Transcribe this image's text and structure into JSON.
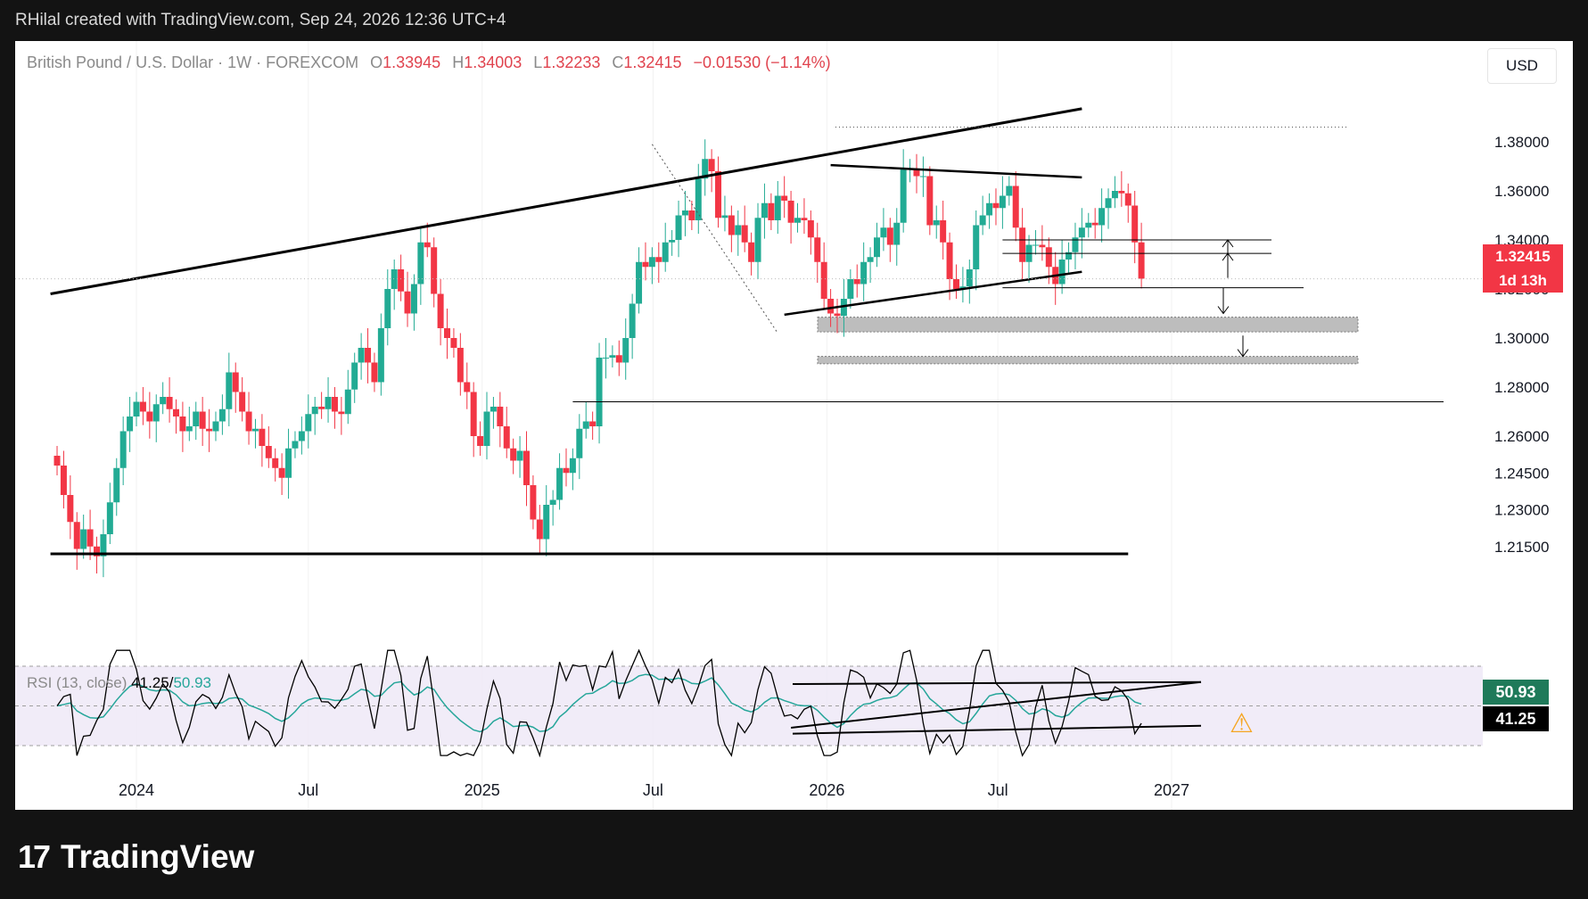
{
  "header": {
    "attribution": "RHilal created with TradingView.com, Sep 24, 2026 12:36 UTC+4"
  },
  "legend": {
    "symbol": "British Pound / U.S. Dollar · 1W · FOREXCOM",
    "open_label": "O",
    "open": "1.33945",
    "high_label": "H",
    "high": "1.34003",
    "low_label": "L",
    "low": "1.32233",
    "close_label": "C",
    "close": "1.32415",
    "change": "−0.01530 (−1.14%)"
  },
  "currency": "USD",
  "price_label": {
    "value": "1.32415",
    "countdown": "1d 13h",
    "color": "#f23645"
  },
  "rsi": {
    "label": "RSI (13, close)",
    "value": "41.25",
    "ma_value": "50.93",
    "slash": "/",
    "color_line": "#000000",
    "color_ma": "#26a69a"
  },
  "brand": {
    "name": "TradingView"
  },
  "colors": {
    "up": "#22ab94",
    "down": "#f23645",
    "zone": "#bdbdbd"
  },
  "icons": [
    "warning-icon",
    "tradingview-logo-icon"
  ],
  "chart_data": {
    "type": "candlestick",
    "symbol": "GBPUSD",
    "timeframe": "1W",
    "y_ticks": [
      "1.38000",
      "1.36000",
      "1.34000",
      "1.32000",
      "1.30000",
      "1.28000",
      "1.26000",
      "1.24500",
      "1.23000",
      "1.21500"
    ],
    "y_tick_values": [
      1.38,
      1.36,
      1.34,
      1.32,
      1.3,
      1.28,
      1.26,
      1.245,
      1.23,
      1.215
    ],
    "x_ticks": [
      "2024",
      "Jul",
      "2025",
      "Jul",
      "2026",
      "Jul",
      "2027"
    ],
    "x_tick_dates": [
      "2024-01-01",
      "2024-07-01",
      "2025-01-01",
      "2025-07-01",
      "2026-01-01",
      "2026-07-01",
      "2027-01-01"
    ],
    "first_week": "2023-10-09",
    "last_close": 1.32415,
    "support_zones": [
      [
        1.3025,
        1.3085
      ],
      [
        1.2895,
        1.2925
      ]
    ],
    "horizontal_lines": [
      1.3205,
      1.34,
      1.3345,
      1.274
    ],
    "closes": [
      1.248,
      1.236,
      1.225,
      1.214,
      1.222,
      1.215,
      1.211,
      1.22,
      1.233,
      1.247,
      1.262,
      1.268,
      1.274,
      1.27,
      1.266,
      1.273,
      1.276,
      1.271,
      1.268,
      1.262,
      1.264,
      1.27,
      1.263,
      1.262,
      1.266,
      1.271,
      1.286,
      1.278,
      1.27,
      1.262,
      1.263,
      1.256,
      1.251,
      1.247,
      1.243,
      1.255,
      1.258,
      1.262,
      1.269,
      1.272,
      1.271,
      1.276,
      1.27,
      1.269,
      1.279,
      1.29,
      1.296,
      1.29,
      1.282,
      1.304,
      1.32,
      1.328,
      1.319,
      1.31,
      1.322,
      1.339,
      1.337,
      1.318,
      1.304,
      1.3,
      1.296,
      1.282,
      1.278,
      1.26,
      1.256,
      1.27,
      1.272,
      1.264,
      1.255,
      1.25,
      1.254,
      1.24,
      1.226,
      1.218,
      1.232,
      1.234,
      1.247,
      1.245,
      1.251,
      1.263,
      1.266,
      1.264,
      1.292,
      1.292,
      1.293,
      1.29,
      1.3,
      1.314,
      1.331,
      1.329,
      1.333,
      1.331,
      1.339,
      1.34,
      1.35,
      1.352,
      1.348,
      1.365,
      1.373,
      1.368,
      1.349,
      1.35,
      1.342,
      1.346,
      1.339,
      1.331,
      1.349,
      1.355,
      1.348,
      1.358,
      1.356,
      1.347,
      1.349,
      1.348,
      1.341,
      1.331,
      1.316,
      1.31,
      1.309,
      1.316,
      1.324,
      1.322,
      1.331,
      1.333,
      1.341,
      1.345,
      1.338,
      1.347,
      1.369,
      1.369,
      1.366,
      1.366,
      1.346,
      1.348,
      1.339,
      1.324,
      1.32,
      1.321,
      1.328,
      1.346,
      1.35,
      1.355,
      1.353,
      1.358,
      1.362,
      1.345,
      1.331,
      1.338,
      1.338,
      1.337,
      1.329,
      1.322,
      1.332,
      1.335,
      1.341,
      1.345,
      1.347,
      1.346,
      1.353,
      1.357,
      1.36,
      1.359,
      1.354,
      1.339,
      1.3242
    ],
    "rsi": {
      "label": "RSI (13, close)",
      "value": 41.25,
      "ma": 50.93,
      "ylim": [
        20,
        80
      ]
    }
  }
}
